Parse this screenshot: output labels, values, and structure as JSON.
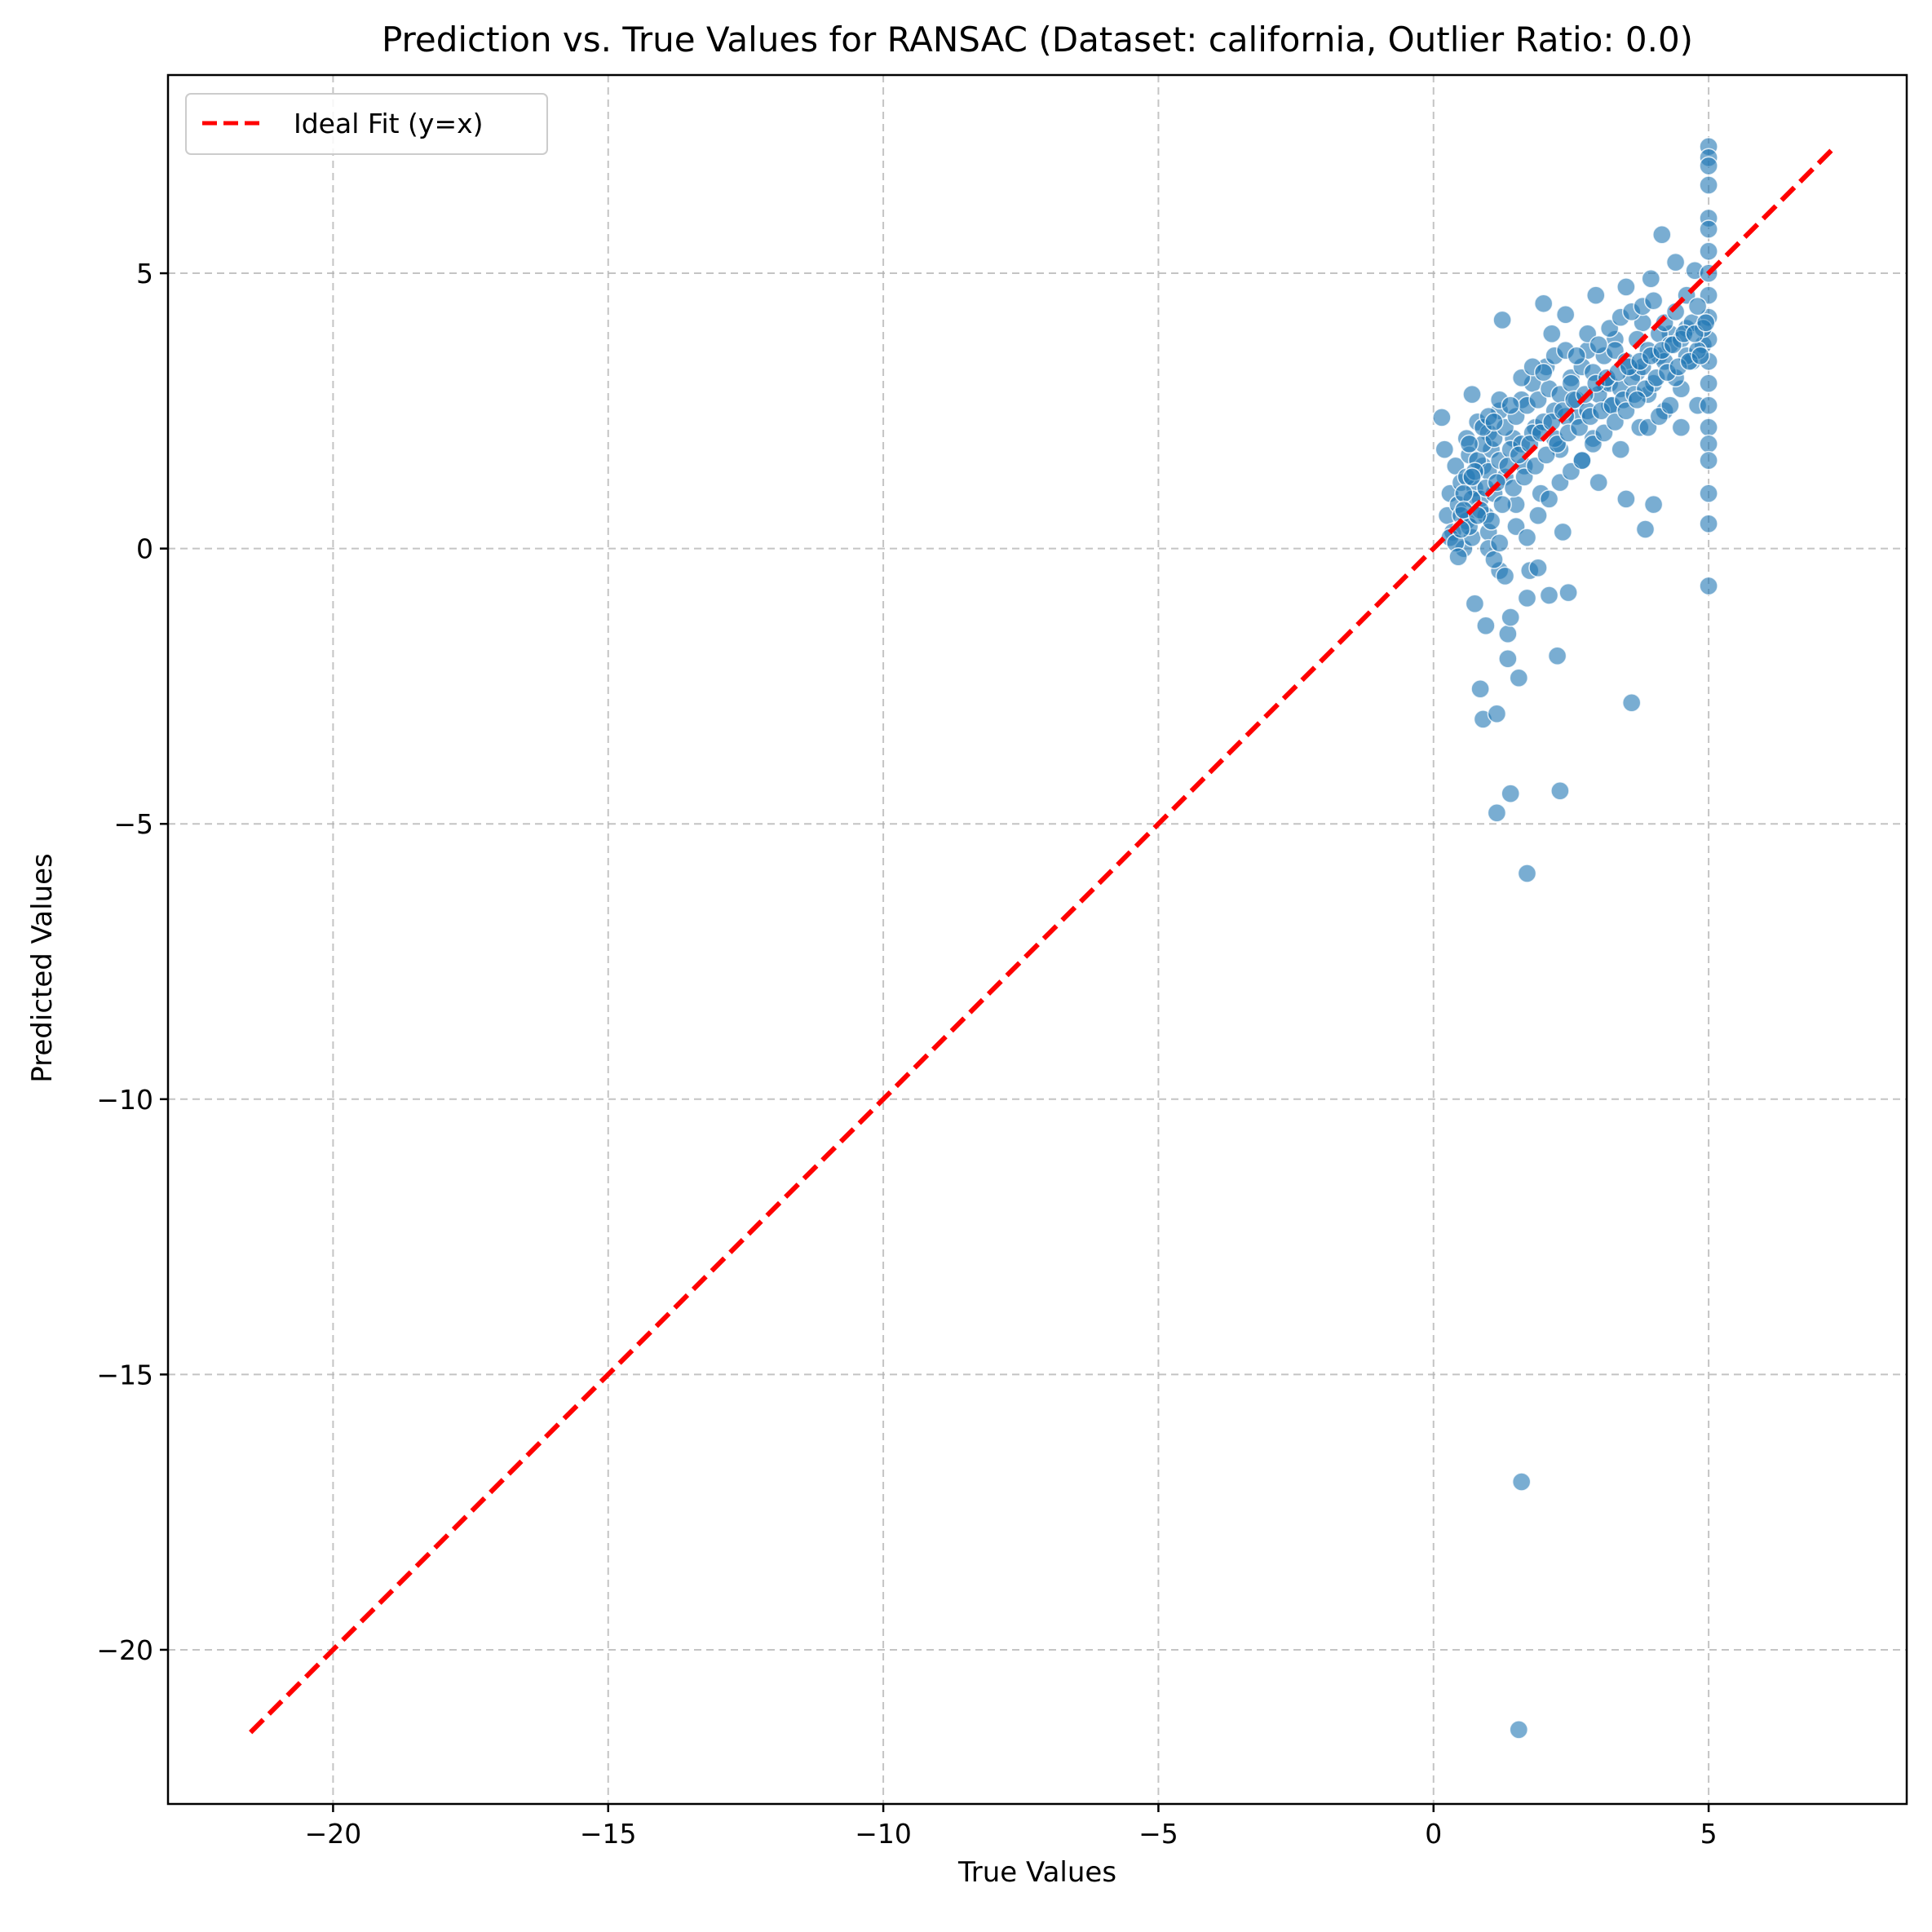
{
  "chart_data": {
    "type": "scatter",
    "title": "Prediction vs. True Values for RANSAC (Dataset: california, Outlier Ratio: 0.0)",
    "xlabel": "True Values",
    "ylabel": "Predicted Values",
    "xlim": [
      -23.0,
      8.6
    ],
    "ylim": [
      -22.8,
      8.6
    ],
    "xticks": [
      -20,
      -15,
      -10,
      -5,
      0,
      5
    ],
    "xtick_labels": [
      "−20",
      "−15",
      "−10",
      "−5",
      "0",
      "5"
    ],
    "yticks": [
      -20,
      -15,
      -10,
      -5,
      0,
      5
    ],
    "ytick_labels": [
      "−20",
      "−15",
      "−10",
      "−5",
      "0",
      "5"
    ],
    "grid": true,
    "legend": {
      "placement": "top-left",
      "entries": [
        "Ideal Fit (y=x)"
      ]
    },
    "ideal_line": {
      "name": "Ideal Fit (y=x)",
      "x": [
        -21.5,
        7.3
      ],
      "y": [
        -21.5,
        7.3
      ],
      "color": "#ff0000",
      "style": "dashed"
    },
    "scatter_color": "#1f77b4",
    "points": [
      [
        0.15,
        2.38
      ],
      [
        0.2,
        1.8
      ],
      [
        0.25,
        0.6
      ],
      [
        0.3,
        1.0
      ],
      [
        0.35,
        0.3
      ],
      [
        0.4,
        1.5
      ],
      [
        0.45,
        0.8
      ],
      [
        0.5,
        1.2
      ],
      [
        0.55,
        0.0
      ],
      [
        0.6,
        0.5
      ],
      [
        0.6,
        2.0
      ],
      [
        0.65,
        1.7
      ],
      [
        0.7,
        2.8
      ],
      [
        0.7,
        0.2
      ],
      [
        0.75,
        1.1
      ],
      [
        0.75,
        -1.0
      ],
      [
        0.8,
        2.3
      ],
      [
        0.85,
        0.9
      ],
      [
        0.85,
        -2.55
      ],
      [
        0.9,
        -3.1
      ],
      [
        0.9,
        1.5
      ],
      [
        0.95,
        -1.4
      ],
      [
        0.95,
        0.6
      ],
      [
        1.0,
        2.1
      ],
      [
        1.0,
        0.3
      ],
      [
        1.05,
        1.8
      ],
      [
        1.1,
        1.0
      ],
      [
        1.15,
        -3.0
      ],
      [
        1.15,
        -4.8
      ],
      [
        1.2,
        2.5
      ],
      [
        1.2,
        -0.4
      ],
      [
        1.25,
        4.15
      ],
      [
        1.3,
        1.3
      ],
      [
        1.35,
        -1.55
      ],
      [
        1.35,
        -2.0
      ],
      [
        1.4,
        -4.45
      ],
      [
        1.4,
        -1.25
      ],
      [
        1.45,
        2.0
      ],
      [
        1.5,
        0.8
      ],
      [
        1.55,
        -2.35
      ],
      [
        1.55,
        -21.45
      ],
      [
        1.6,
        -16.95
      ],
      [
        1.6,
        2.7
      ],
      [
        1.65,
        1.5
      ],
      [
        1.7,
        -5.9
      ],
      [
        1.7,
        -0.9
      ],
      [
        1.75,
        -0.4
      ],
      [
        1.8,
        3.0
      ],
      [
        1.85,
        2.2
      ],
      [
        1.9,
        -0.35
      ],
      [
        1.95,
        1.0
      ],
      [
        2.0,
        4.45
      ],
      [
        2.05,
        3.3
      ],
      [
        2.1,
        -0.85
      ],
      [
        2.15,
        3.9
      ],
      [
        2.2,
        2.5
      ],
      [
        2.25,
        -1.95
      ],
      [
        2.3,
        1.8
      ],
      [
        2.3,
        -4.4
      ],
      [
        2.35,
        0.3
      ],
      [
        2.4,
        4.25
      ],
      [
        2.45,
        -0.8
      ],
      [
        2.5,
        3.1
      ],
      [
        2.6,
        2.4
      ],
      [
        2.7,
        1.6
      ],
      [
        2.8,
        3.6
      ],
      [
        2.9,
        2.0
      ],
      [
        2.95,
        4.6
      ],
      [
        3.0,
        1.2
      ],
      [
        3.1,
        3.0
      ],
      [
        3.2,
        2.6
      ],
      [
        3.3,
        3.8
      ],
      [
        3.4,
        1.8
      ],
      [
        3.5,
        4.75
      ],
      [
        3.5,
        0.9
      ],
      [
        3.6,
        -2.8
      ],
      [
        3.7,
        3.2
      ],
      [
        3.75,
        2.2
      ],
      [
        3.8,
        4.1
      ],
      [
        3.85,
        0.35
      ],
      [
        3.9,
        2.8
      ],
      [
        3.95,
        4.9
      ],
      [
        4.0,
        0.8
      ],
      [
        4.1,
        3.5
      ],
      [
        4.15,
        5.7
      ],
      [
        4.2,
        2.5
      ],
      [
        4.3,
        3.9
      ],
      [
        4.4,
        5.2
      ],
      [
        4.5,
        2.9
      ],
      [
        4.6,
        4.0
      ],
      [
        4.7,
        3.4
      ],
      [
        4.75,
        5.05
      ],
      [
        4.8,
        2.6
      ],
      [
        4.9,
        3.7
      ],
      [
        5.0,
        7.3
      ],
      [
        5.0,
        7.1
      ],
      [
        5.0,
        6.95
      ],
      [
        5.0,
        6.6
      ],
      [
        5.0,
        6.0
      ],
      [
        5.0,
        5.8
      ],
      [
        5.0,
        5.4
      ],
      [
        5.0,
        5.0
      ],
      [
        5.0,
        4.6
      ],
      [
        5.0,
        4.2
      ],
      [
        5.0,
        3.8
      ],
      [
        5.0,
        3.4
      ],
      [
        5.0,
        3.0
      ],
      [
        5.0,
        2.6
      ],
      [
        5.0,
        2.2
      ],
      [
        5.0,
        1.9
      ],
      [
        5.0,
        1.6
      ],
      [
        5.0,
        1.0
      ],
      [
        5.0,
        0.45
      ],
      [
        5.0,
        -0.68
      ],
      [
        0.5,
        0.6
      ],
      [
        0.6,
        1.3
      ],
      [
        0.7,
        0.9
      ],
      [
        0.8,
        1.6
      ],
      [
        0.9,
        1.9
      ],
      [
        1.0,
        1.4
      ],
      [
        1.1,
        2.0
      ],
      [
        1.2,
        1.6
      ],
      [
        1.3,
        2.2
      ],
      [
        1.4,
        1.8
      ],
      [
        1.5,
        2.4
      ],
      [
        1.6,
        1.9
      ],
      [
        1.7,
        2.6
      ],
      [
        1.8,
        2.1
      ],
      [
        1.9,
        2.7
      ],
      [
        2.0,
        2.3
      ],
      [
        2.1,
        2.9
      ],
      [
        2.2,
        2.0
      ],
      [
        2.3,
        2.8
      ],
      [
        2.4,
        2.4
      ],
      [
        2.5,
        3.0
      ],
      [
        2.6,
        2.7
      ],
      [
        2.7,
        3.3
      ],
      [
        2.8,
        2.5
      ],
      [
        2.9,
        3.2
      ],
      [
        3.0,
        2.8
      ],
      [
        3.1,
        3.5
      ],
      [
        3.2,
        3.0
      ],
      [
        3.3,
        3.6
      ],
      [
        3.4,
        2.9
      ],
      [
        3.5,
        3.4
      ],
      [
        3.6,
        3.1
      ],
      [
        3.7,
        3.8
      ],
      [
        3.8,
        3.3
      ],
      [
        3.9,
        3.6
      ],
      [
        4.0,
        3.0
      ],
      [
        4.1,
        3.9
      ],
      [
        4.2,
        3.4
      ],
      [
        4.3,
        3.7
      ],
      [
        4.4,
        3.1
      ],
      [
        4.5,
        3.8
      ],
      [
        4.6,
        3.5
      ],
      [
        4.7,
        4.1
      ],
      [
        4.8,
        3.6
      ],
      [
        4.9,
        4.0
      ],
      [
        0.55,
        1.0
      ],
      [
        0.65,
        0.4
      ],
      [
        0.75,
        1.4
      ],
      [
        0.85,
        0.7
      ],
      [
        0.95,
        1.1
      ],
      [
        1.05,
        0.5
      ],
      [
        1.15,
        1.2
      ],
      [
        1.25,
        0.8
      ],
      [
        1.35,
        1.5
      ],
      [
        1.45,
        1.1
      ],
      [
        1.55,
        1.7
      ],
      [
        1.65,
        1.3
      ],
      [
        1.75,
        1.9
      ],
      [
        1.85,
        1.5
      ],
      [
        1.95,
        2.1
      ],
      [
        2.05,
        1.7
      ],
      [
        2.15,
        2.3
      ],
      [
        2.25,
        1.9
      ],
      [
        2.35,
        2.5
      ],
      [
        2.45,
        2.1
      ],
      [
        2.55,
        2.7
      ],
      [
        2.65,
        2.2
      ],
      [
        2.75,
        2.8
      ],
      [
        2.85,
        2.4
      ],
      [
        2.95,
        3.0
      ],
      [
        3.05,
        2.5
      ],
      [
        3.15,
        3.1
      ],
      [
        3.25,
        2.6
      ],
      [
        3.35,
        3.2
      ],
      [
        3.45,
        2.7
      ],
      [
        3.55,
        3.3
      ],
      [
        3.65,
        2.8
      ],
      [
        3.75,
        3.4
      ],
      [
        3.85,
        2.9
      ],
      [
        3.95,
        3.5
      ],
      [
        4.05,
        3.1
      ],
      [
        4.15,
        3.6
      ],
      [
        4.25,
        3.2
      ],
      [
        4.35,
        3.7
      ],
      [
        4.45,
        3.3
      ],
      [
        4.55,
        3.9
      ],
      [
        4.65,
        3.4
      ],
      [
        4.75,
        3.9
      ],
      [
        4.85,
        3.5
      ],
      [
        4.95,
        4.1
      ],
      [
        1.0,
        0.0
      ],
      [
        1.1,
        -0.2
      ],
      [
        1.2,
        0.1
      ],
      [
        1.3,
        -0.5
      ],
      [
        1.5,
        0.4
      ],
      [
        1.7,
        0.2
      ],
      [
        1.9,
        0.6
      ],
      [
        2.1,
        0.9
      ],
      [
        2.3,
        1.2
      ],
      [
        2.5,
        1.4
      ],
      [
        2.7,
        1.6
      ],
      [
        2.9,
        1.9
      ],
      [
        3.1,
        2.1
      ],
      [
        3.3,
        2.3
      ],
      [
        3.5,
        2.5
      ],
      [
        3.7,
        2.7
      ],
      [
        3.9,
        2.2
      ],
      [
        4.1,
        2.4
      ],
      [
        4.3,
        2.6
      ],
      [
        4.5,
        2.2
      ],
      [
        0.3,
        0.2
      ],
      [
        0.4,
        0.1
      ],
      [
        0.45,
        -0.15
      ],
      [
        0.5,
        0.35
      ],
      [
        0.55,
        0.7
      ],
      [
        0.65,
        1.9
      ],
      [
        0.7,
        1.3
      ],
      [
        0.8,
        0.6
      ],
      [
        0.9,
        2.2
      ],
      [
        1.0,
        2.4
      ],
      [
        1.1,
        2.3
      ],
      [
        1.2,
        2.7
      ],
      [
        1.4,
        2.6
      ],
      [
        1.6,
        3.1
      ],
      [
        1.8,
        3.3
      ],
      [
        2.0,
        3.2
      ],
      [
        2.2,
        3.5
      ],
      [
        2.4,
        3.6
      ],
      [
        2.6,
        3.5
      ],
      [
        2.8,
        3.9
      ],
      [
        3.0,
        3.7
      ],
      [
        3.2,
        4.0
      ],
      [
        3.4,
        4.2
      ],
      [
        3.6,
        4.3
      ],
      [
        3.8,
        4.4
      ],
      [
        4.0,
        4.5
      ],
      [
        4.2,
        4.1
      ],
      [
        4.4,
        4.3
      ],
      [
        4.6,
        4.6
      ],
      [
        4.8,
        4.4
      ]
    ]
  }
}
